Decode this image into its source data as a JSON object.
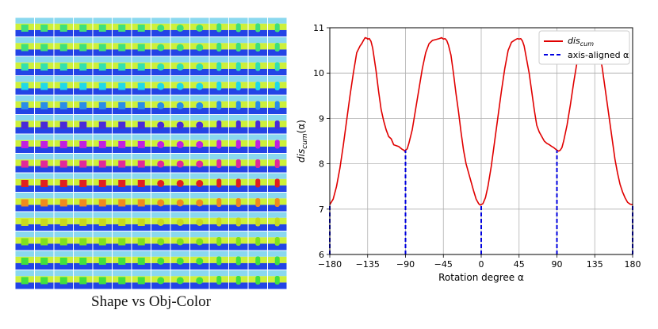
{
  "grid_figure": {
    "caption": "Shape vs Obj-Color",
    "rows": 14,
    "cols": 14,
    "colors": {
      "sky": "#8ad8ef",
      "wall": "#cdf03a",
      "floor": "#2344e6"
    },
    "row_object_colors": [
      "#3fe07a",
      "#3fe07a",
      "#33e0b0",
      "#20d8e8",
      "#2a8ce8",
      "#4a2ad8",
      "#c020e0",
      "#e02a9a",
      "#e02020",
      "#f08a20",
      "#c8d820",
      "#80e020",
      "#40e040",
      "#40e040"
    ],
    "column_shapes": [
      "cube",
      "cube",
      "cube",
      "cube",
      "cube",
      "cube",
      "cube",
      "sphere",
      "sphere",
      "sphere",
      "cylinder",
      "cylinder",
      "cylinder",
      "cylinder"
    ]
  },
  "chart_data": {
    "type": "line",
    "xlabel": "Rotation degree α",
    "ylabel_base": "dis",
    "ylabel_sub": "cum",
    "ylabel_arg": "(α)",
    "xlim": [
      -180,
      180
    ],
    "ylim": [
      6,
      11
    ],
    "xticks": [
      -180,
      -135,
      -90,
      -45,
      0,
      45,
      90,
      135,
      180
    ],
    "yticks": [
      6,
      7,
      8,
      9,
      10,
      11
    ],
    "grid": true,
    "legend_position": "top-right",
    "series": [
      {
        "name_base": "dis",
        "name_sub": "cum",
        "color": "#e00000",
        "style": "solid",
        "x": [
          -180,
          -176,
          -172,
          -168,
          -164,
          -160,
          -156,
          -152,
          -148,
          -144,
          -142,
          -140,
          -138,
          -136,
          -135,
          -133,
          -131,
          -129,
          -127,
          -125,
          -122,
          -119,
          -116,
          -113,
          -110,
          -107,
          -104,
          -101,
          -98,
          -96,
          -94,
          -92,
          -91,
          -90,
          -88,
          -86,
          -84,
          -82,
          -78,
          -74,
          -70,
          -66,
          -62,
          -58,
          -54,
          -50,
          -47,
          -45,
          -43,
          -41,
          -39,
          -36,
          -33,
          -30,
          -27,
          -24,
          -21,
          -18,
          -15,
          -12,
          -9,
          -6,
          -3,
          -1,
          0,
          2,
          5,
          8,
          12,
          16,
          20,
          24,
          28,
          32,
          36,
          40,
          43,
          45,
          47,
          49,
          51,
          54,
          57,
          60,
          63,
          66,
          69,
          72,
          75,
          78,
          81,
          84,
          86,
          88,
          90,
          92,
          94,
          96,
          98,
          102,
          106,
          110,
          114,
          118,
          122,
          126,
          130,
          133,
          135,
          137,
          139,
          141,
          144,
          147,
          150,
          153,
          156,
          159,
          162,
          165,
          168,
          171,
          174,
          177,
          180
        ],
        "y": [
          7.1,
          7.22,
          7.5,
          7.9,
          8.4,
          8.95,
          9.5,
          10.0,
          10.45,
          10.6,
          10.65,
          10.72,
          10.78,
          10.77,
          10.75,
          10.76,
          10.7,
          10.55,
          10.3,
          10.05,
          9.6,
          9.2,
          8.95,
          8.75,
          8.6,
          8.55,
          8.42,
          8.4,
          8.38,
          8.35,
          8.32,
          8.3,
          8.28,
          8.3,
          8.33,
          8.45,
          8.6,
          8.75,
          9.2,
          9.65,
          10.1,
          10.45,
          10.65,
          10.72,
          10.74,
          10.76,
          10.78,
          10.75,
          10.76,
          10.72,
          10.62,
          10.4,
          10.0,
          9.55,
          9.15,
          8.7,
          8.3,
          8.0,
          7.8,
          7.6,
          7.4,
          7.22,
          7.12,
          7.09,
          7.1,
          7.12,
          7.25,
          7.5,
          7.95,
          8.5,
          9.05,
          9.6,
          10.1,
          10.5,
          10.68,
          10.73,
          10.76,
          10.75,
          10.76,
          10.71,
          10.6,
          10.3,
          10.0,
          9.6,
          9.2,
          8.85,
          8.7,
          8.6,
          8.5,
          8.45,
          8.42,
          8.38,
          8.36,
          8.33,
          8.3,
          8.28,
          8.3,
          8.36,
          8.5,
          8.85,
          9.3,
          9.8,
          10.25,
          10.5,
          10.65,
          10.72,
          10.74,
          10.76,
          10.75,
          10.72,
          10.62,
          10.42,
          10.1,
          9.7,
          9.3,
          8.9,
          8.5,
          8.1,
          7.8,
          7.55,
          7.38,
          7.25,
          7.15,
          7.11,
          7.1
        ]
      },
      {
        "name": "axis-aligned α",
        "color": "#0000e0",
        "style": "dashed",
        "x": [
          -180,
          -90,
          0,
          90,
          180
        ],
        "y": [
          7.1,
          8.3,
          7.1,
          8.3,
          7.1
        ]
      }
    ]
  }
}
